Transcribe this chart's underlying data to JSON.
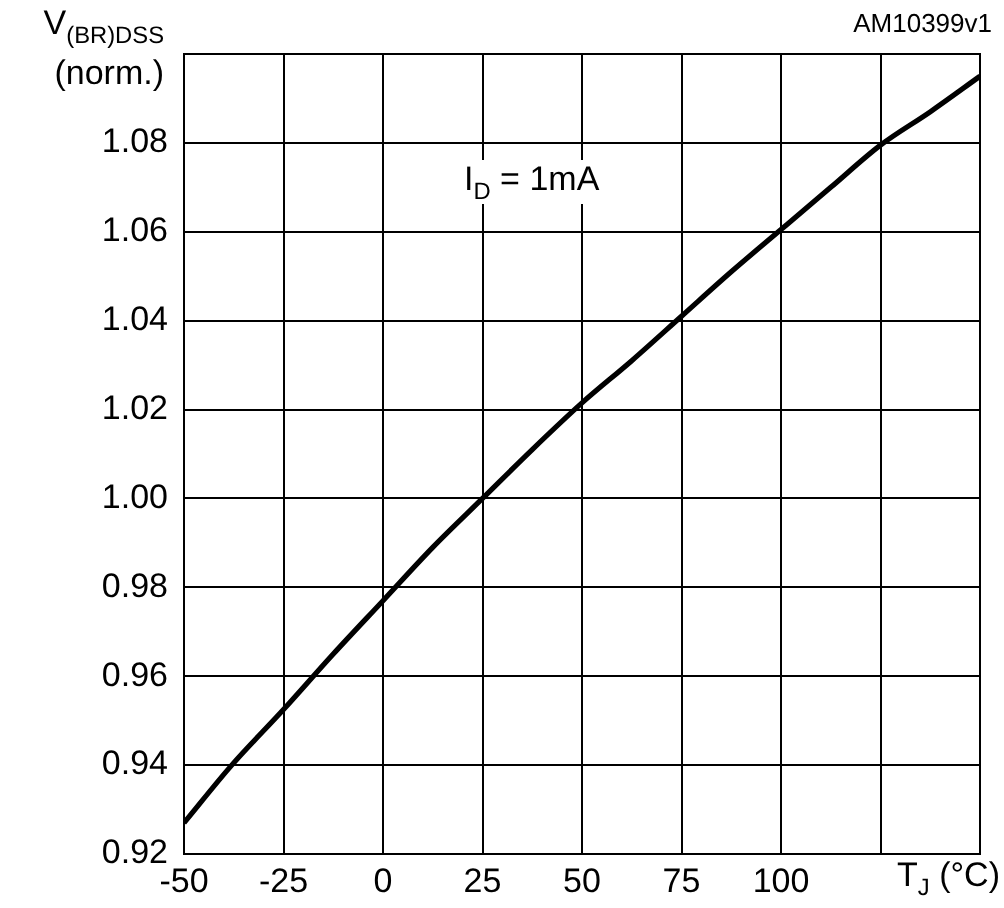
{
  "chart_data": {
    "type": "line",
    "ylabel": "V$_{(BR)DSS}$ (norm.)",
    "xlabel": "T$_{J}$ (°C)",
    "annotations": [
      "AM10399v1",
      "I$_{D}$ = 1mA"
    ],
    "x": [
      -50,
      -38,
      -25,
      -12.5,
      0,
      12.5,
      25,
      37.5,
      50,
      62.5,
      75,
      87.5,
      100,
      112.5,
      125,
      137.5,
      150
    ],
    "series": [
      {
        "color": "#000000",
        "values": [
          0.927,
          0.94,
          0.9525,
          0.965,
          0.977,
          0.989,
          1.0,
          1.011,
          1.0215,
          1.031,
          1.041,
          1.051,
          1.0605,
          1.07,
          1.0795,
          1.087,
          1.095
        ]
      }
    ],
    "xlim": [
      -50,
      150
    ],
    "xticks": [
      -50,
      -25,
      0,
      25,
      50,
      75,
      100,
      {
        "value": 125,
        "label": null
      },
      {
        "value": 150,
        "label": null
      }
    ],
    "ylim": [
      0.92,
      1.1
    ],
    "yticks": [
      {
        "value": 0.92,
        "label": "0.92"
      },
      {
        "value": 0.94,
        "label": "0.94"
      },
      {
        "value": 0.96,
        "label": "0.96"
      },
      {
        "value": 0.98,
        "label": "0.98"
      },
      {
        "value": 1.0,
        "label": "1.00"
      },
      {
        "value": 1.02,
        "label": "1.02"
      },
      {
        "value": 1.04,
        "label": "1.04"
      },
      {
        "value": 1.06,
        "label": "1.06"
      },
      {
        "value": 1.08,
        "label": "1.08"
      },
      {
        "value": 1.1,
        "label": null
      }
    ],
    "grid": true,
    "legend": false,
    "marker": "none",
    "line_style": "solid"
  }
}
